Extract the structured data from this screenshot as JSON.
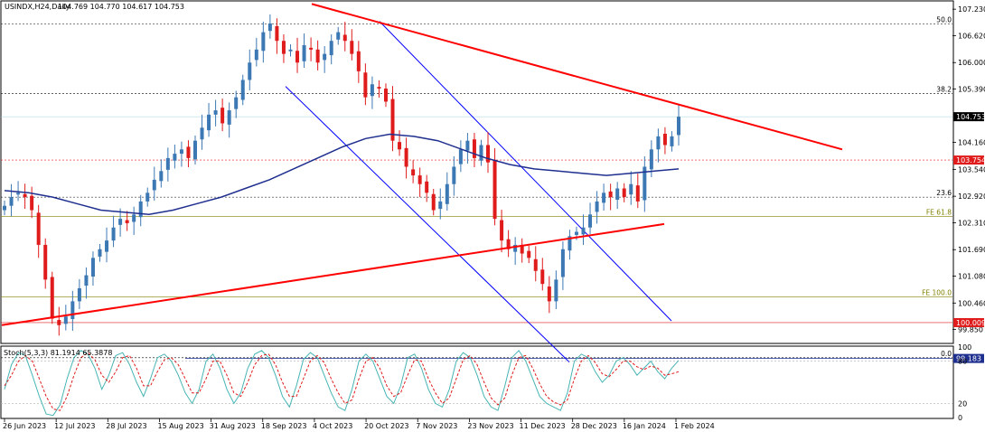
{
  "header": {
    "symbol": "USINDX,H24,Daily",
    "ohlc": "104.769 104.770 104.617 104.753"
  },
  "stoch_label": "Stoch(5,3,3) 81.1914 65.3878",
  "colors": {
    "bull": "#3c78b4",
    "bear": "#e01b1b",
    "ma": "#1f2f8f",
    "trendline": "#ff0000",
    "channel": "#0000ff",
    "fib": "#808000",
    "stoch_main": "#48b4b4",
    "stoch_signal": "#e01b1b"
  },
  "chart_data": {
    "type": "candlestick",
    "title": "USINDX,H24,Daily",
    "ylim": [
      99.55,
      107.4
    ],
    "y_ticks": [
      "107.230",
      "106.620",
      "106.000",
      "105.390",
      "104.160",
      "103.540",
      "102.920",
      "102.310",
      "101.690",
      "101.080",
      "100.460",
      "99.850"
    ],
    "x_ticks": [
      "26 Jun 2023",
      "12 Jul 2023",
      "28 Jul 2023",
      "15 Aug 2023",
      "31 Aug 2023",
      "18 Sep 2023",
      "4 Oct 2023",
      "20 Oct 2023",
      "7 Nov 2023",
      "23 Nov 2023",
      "11 Dec 2023",
      "28 Dec 2023",
      "16 Jan 2024",
      "1 Feb 2024"
    ],
    "close_path": [
      102.7,
      102.9,
      103.0,
      102.9,
      102.6,
      101.8,
      101.0,
      100.1,
      99.95,
      100.15,
      100.5,
      100.8,
      101.1,
      101.5,
      101.7,
      101.9,
      102.2,
      102.4,
      102.3,
      102.5,
      102.8,
      103.0,
      103.3,
      103.5,
      103.8,
      103.9,
      104.0,
      103.8,
      104.2,
      104.5,
      104.8,
      104.9,
      104.6,
      104.9,
      105.2,
      105.6,
      106.0,
      106.3,
      106.7,
      106.9,
      106.5,
      106.2,
      106.3,
      106.0,
      106.4,
      106.3,
      106.0,
      106.2,
      106.5,
      106.7,
      106.5,
      106.2,
      105.8,
      105.2,
      105.5,
      105.4,
      105.1,
      104.2,
      104.0,
      103.6,
      103.4,
      103.2,
      103.0,
      102.6,
      102.8,
      103.2,
      103.6,
      104.0,
      104.2,
      103.8,
      104.1,
      103.7,
      102.4,
      101.9,
      101.7,
      101.8,
      101.6,
      101.5,
      101.2,
      100.9,
      100.5,
      101.0,
      101.7,
      102.0,
      102.1,
      102.2,
      102.5,
      102.8,
      103.0,
      102.9,
      103.1,
      102.9,
      103.2,
      102.8,
      103.6,
      104.0,
      104.3,
      104.1,
      104.3,
      104.753
    ],
    "series": [
      {
        "name": "MA",
        "values": [
          103.05,
          103.0,
          102.9,
          102.75,
          102.6,
          102.55,
          102.5,
          102.6,
          102.75,
          102.9,
          103.1,
          103.3,
          103.55,
          103.8,
          104.05,
          104.25,
          104.35,
          104.3,
          104.2,
          104.0,
          103.8,
          103.65,
          103.55,
          103.5,
          103.45,
          103.4,
          103.45,
          103.5,
          103.55
        ]
      },
      {
        "name": "Stoch main",
        "values": [
          40,
          75,
          92,
          88,
          60,
          30,
          5,
          3,
          18,
          55,
          85,
          95,
          90,
          70,
          40,
          60,
          88,
          92,
          75,
          50,
          30,
          55,
          85,
          90,
          80,
          60,
          35,
          20,
          40,
          80,
          90,
          70,
          40,
          20,
          35,
          70,
          90,
          95,
          85,
          60,
          30,
          15,
          45,
          82,
          92,
          85,
          60,
          35,
          15,
          10,
          40,
          80,
          90,
          80,
          55,
          30,
          20,
          45,
          85,
          90,
          70,
          40,
          20,
          15,
          40,
          80,
          92,
          85,
          60,
          30,
          15,
          10,
          45,
          85,
          95,
          80,
          55,
          30,
          20,
          15,
          10,
          35,
          80,
          90,
          85,
          65,
          50,
          60,
          80,
          85,
          75,
          60,
          70,
          80,
          65,
          55,
          70,
          81
        ]
      },
      {
        "name": "Stoch signal",
        "values": [
          45,
          60,
          80,
          88,
          80,
          55,
          30,
          12,
          10,
          30,
          60,
          85,
          92,
          82,
          60,
          50,
          65,
          85,
          88,
          70,
          45,
          45,
          65,
          82,
          85,
          75,
          55,
          35,
          35,
          55,
          80,
          80,
          60,
          35,
          30,
          50,
          75,
          88,
          90,
          75,
          50,
          30,
          30,
          55,
          80,
          88,
          78,
          55,
          35,
          20,
          25,
          55,
          80,
          85,
          70,
          45,
          30,
          35,
          60,
          82,
          80,
          55,
          35,
          20,
          28,
          55,
          82,
          88,
          75,
          50,
          28,
          18,
          28,
          60,
          85,
          88,
          70,
          48,
          30,
          22,
          18,
          25,
          55,
          80,
          88,
          78,
          62,
          58,
          68,
          80,
          80,
          72,
          68,
          73,
          70,
          60,
          62,
          65
        ]
      }
    ],
    "levels": [
      {
        "label": "50.0",
        "value": 106.89
      },
      {
        "label": "38.2",
        "value": 105.29
      },
      {
        "label": "23.6",
        "value": 102.9
      },
      {
        "label": "FE 61.8",
        "value": 102.45
      },
      {
        "label": "FE 100.0",
        "value": 100.6
      },
      {
        "label": "0.0",
        "value": 99.2
      }
    ],
    "price_tags": [
      {
        "label": "104.753",
        "value": 104.753,
        "color": "#000000"
      },
      {
        "label": "103.754",
        "value": 103.754,
        "color": "#e01b1b"
      },
      {
        "label": "100.009",
        "value": 100.009,
        "color": "#e01b1b"
      },
      {
        "label": "99.183",
        "value": 99.183,
        "color": "#1f2f8f"
      }
    ],
    "stoch_ticks": [
      "100",
      "80",
      "20",
      "0"
    ],
    "stoch_ylim": [
      0,
      100
    ]
  }
}
